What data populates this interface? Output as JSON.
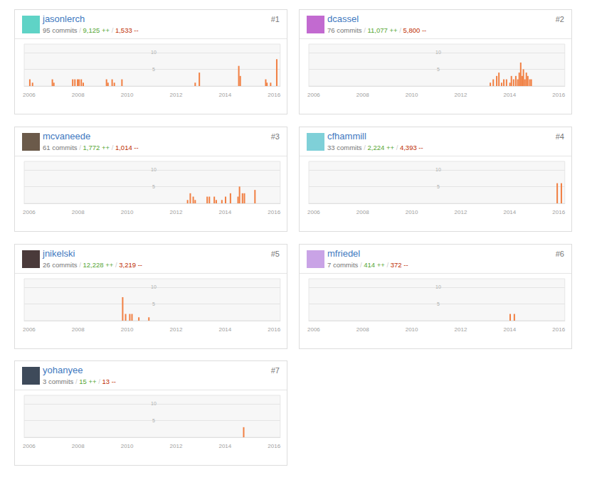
{
  "chart_data": [
    {
      "type": "bar",
      "title": "jasonlerch",
      "subtitle": "95 commits / 9,125 ++ / 1,533 --",
      "annotations": [
        "#1"
      ],
      "x": [
        2006.03,
        2006.14,
        2006.95,
        2007.01,
        2007.78,
        2007.87,
        2007.98,
        2008.04,
        2008.13,
        2008.21,
        2009.16,
        2009.22,
        2009.39,
        2009.48,
        2009.79,
        2012.78,
        2012.95,
        2014.56,
        2014.62,
        2015.66,
        2015.71,
        2015.86,
        2016.11
      ],
      "values": [
        2,
        1,
        2,
        1,
        2,
        2,
        2,
        2,
        2,
        1,
        2,
        1,
        2,
        1,
        2,
        1,
        4,
        6,
        3,
        2,
        1,
        1,
        8
      ],
      "color": "#f17f42",
      "xlim": [
        2005.8,
        2016.25
      ],
      "xticks": [
        2006,
        2008,
        2010,
        2012,
        2014,
        2016
      ],
      "ylim": [
        0,
        12.5
      ],
      "yticks": [
        5,
        10
      ],
      "grid": true
    },
    {
      "type": "bar",
      "title": "dcassel",
      "subtitle": "76 commits / 11,077 ++ / 5,800 --",
      "annotations": [
        "#2"
      ],
      "x": [
        2013.21,
        2013.33,
        2013.47,
        2013.56,
        2013.67,
        2013.76,
        2013.87,
        2014.01,
        2014.07,
        2014.16,
        2014.25,
        2014.33,
        2014.39,
        2014.45,
        2014.51,
        2014.56,
        2014.62,
        2014.68,
        2014.74,
        2014.82,
        2014.88
      ],
      "values": [
        1,
        2,
        3,
        4,
        1,
        2,
        2,
        1,
        3,
        2,
        3,
        2,
        4,
        7,
        3,
        5,
        2,
        4,
        3,
        2,
        2
      ],
      "color": "#f17f42",
      "xlim": [
        2005.8,
        2016.25
      ],
      "xticks": [
        2006,
        2008,
        2010,
        2012,
        2014,
        2016
      ],
      "ylim": [
        0,
        12.5
      ],
      "yticks": [
        5,
        10
      ],
      "grid": true
    },
    {
      "type": "bar",
      "title": "mcvaneede",
      "subtitle": "61 commits / 1,772 ++ / 1,014 --",
      "annotations": [
        "#3"
      ],
      "x": [
        2012.47,
        2012.58,
        2012.7,
        2012.78,
        2013.27,
        2013.36,
        2013.56,
        2013.64,
        2013.87,
        2014.02,
        2014.22,
        2014.53,
        2014.59,
        2014.71,
        2014.79,
        2015.22
      ],
      "values": [
        1,
        3,
        2,
        1,
        2,
        2,
        2,
        1,
        1,
        2,
        3,
        2,
        5,
        3,
        3,
        4
      ],
      "color": "#f17f42",
      "xlim": [
        2005.8,
        2016.25
      ],
      "xticks": [
        2006,
        2008,
        2010,
        2012,
        2014,
        2016
      ],
      "ylim": [
        0,
        12.5
      ],
      "yticks": [
        5,
        10
      ],
      "grid": true
    },
    {
      "type": "bar",
      "title": "cfhammill",
      "subtitle": "33 commits / 2,224 ++ / 4,393 --",
      "annotations": [
        "#4"
      ],
      "x": [
        2015.94,
        2016.11
      ],
      "values": [
        6,
        6
      ],
      "color": "#f17f42",
      "xlim": [
        2005.8,
        2016.25
      ],
      "xticks": [
        2006,
        2008,
        2010,
        2012,
        2014,
        2016
      ],
      "ylim": [
        0,
        12.5
      ],
      "yticks": [
        5,
        10
      ],
      "grid": true
    },
    {
      "type": "bar",
      "title": "jnikelski",
      "subtitle": "26 commits / 12,228 ++ / 3,219 --",
      "annotations": [
        "#5"
      ],
      "x": [
        2009.82,
        2009.94,
        2010.11,
        2010.2,
        2010.48,
        2010.89
      ],
      "values": [
        7,
        2,
        2,
        2,
        1,
        1
      ],
      "color": "#f17f42",
      "xlim": [
        2005.8,
        2016.25
      ],
      "xticks": [
        2006,
        2008,
        2010,
        2012,
        2014,
        2016
      ],
      "ylim": [
        0,
        12.5
      ],
      "yticks": [
        5,
        10
      ],
      "grid": true
    },
    {
      "type": "bar",
      "title": "mfriedel",
      "subtitle": "7 commits / 414 ++ / 372 --",
      "annotations": [
        "#6"
      ],
      "x": [
        2014.02,
        2014.19
      ],
      "values": [
        2,
        2
      ],
      "color": "#f17f42",
      "xlim": [
        2005.8,
        2016.25
      ],
      "xticks": [
        2006,
        2008,
        2010,
        2012,
        2014,
        2016
      ],
      "ylim": [
        0,
        12.5
      ],
      "yticks": [
        5,
        10
      ],
      "grid": true
    },
    {
      "type": "bar",
      "title": "yohanyee",
      "subtitle": "3 commits / 15 ++ / 13 --",
      "annotations": [
        "#7"
      ],
      "x": [
        2014.76
      ],
      "values": [
        3
      ],
      "color": "#f17f42",
      "xlim": [
        2005.8,
        2016.25
      ],
      "xticks": [
        2006,
        2008,
        2010,
        2012,
        2014,
        2016
      ],
      "ylim": [
        0,
        12.5
      ],
      "yticks": [
        5,
        10
      ],
      "grid": true
    }
  ]
}
